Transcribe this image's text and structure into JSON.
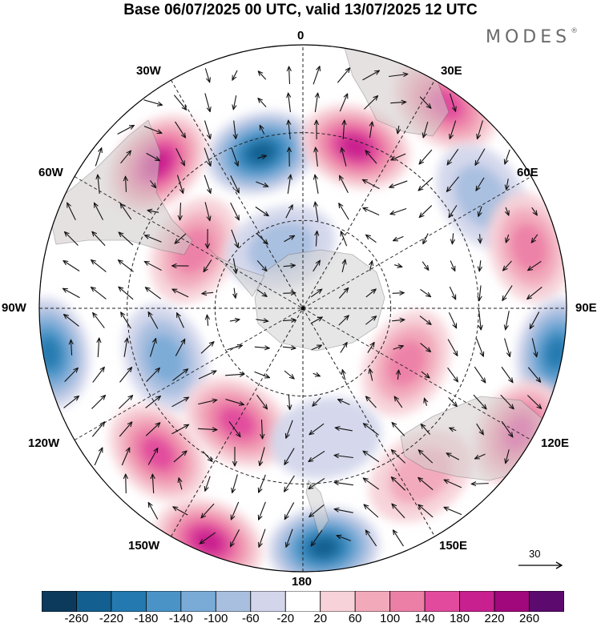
{
  "title": "Base 06/07/2025 00 UTC, valid 13/07/2025 12 UTC",
  "brand": "MODES",
  "brand_mark": "®",
  "longitude_labels": {
    "lon_0": "0",
    "lon_30e": "30E",
    "lon_60e": "60E",
    "lon_90e": "90E",
    "lon_120e": "120E",
    "lon_150e": "150E",
    "lon_180": "180",
    "lon_150w": "150W",
    "lon_120w": "120W",
    "lon_90w": "90W",
    "lon_60w": "60W",
    "lon_30w": "30W"
  },
  "reference_vector": {
    "label": "30"
  },
  "colorbar": {
    "ticks": [
      "-260",
      "-220",
      "-180",
      "-140",
      "-100",
      "-60",
      "-20",
      "20",
      "60",
      "100",
      "140",
      "180",
      "220",
      "260"
    ],
    "colors": [
      "#0b3a5c",
      "#135f8f",
      "#2479b0",
      "#4a93c6",
      "#7aabd6",
      "#a9bfdf",
      "#d3d6eb",
      "#ffffff",
      "#f7d2d8",
      "#f2aabb",
      "#ec7fa6",
      "#e24a9d",
      "#c8208e",
      "#a0087c",
      "#5c0a6e"
    ]
  },
  "map_data": {
    "projection": "south polar stereographic",
    "anomalies": [
      {
        "lon": -15,
        "lat_off": 55,
        "value": -220
      },
      {
        "lon": 18,
        "lat_off": 58,
        "value": 200
      },
      {
        "lon": 35,
        "lat_off": 85,
        "value": 140
      },
      {
        "lon": 58,
        "lat_off": 72,
        "value": -80
      },
      {
        "lon": 75,
        "lat_off": 80,
        "value": 100
      },
      {
        "lon": 100,
        "lat_off": 88,
        "value": -200
      },
      {
        "lon": 120,
        "lat_off": 85,
        "value": 160
      },
      {
        "lon": 145,
        "lat_off": 70,
        "value": 60
      },
      {
        "lon": 118,
        "lat_off": 40,
        "value": 100
      },
      {
        "lon": -45,
        "lat_off": 70,
        "value": 180
      },
      {
        "lon": -62,
        "lat_off": 42,
        "value": 100
      },
      {
        "lon": -100,
        "lat_off": 88,
        "value": -200
      },
      {
        "lon": -110,
        "lat_off": 50,
        "value": -100
      },
      {
        "lon": -135,
        "lat_off": 70,
        "value": 170
      },
      {
        "lon": -150,
        "lat_off": 45,
        "value": 140
      },
      {
        "lon": 175,
        "lat_off": 82,
        "value": -220
      },
      {
        "lon": -158,
        "lat_off": 86,
        "value": 200
      },
      {
        "lon": 170,
        "lat_off": 45,
        "value": -40
      },
      {
        "lon": -20,
        "lat_off": 22,
        "value": -60
      }
    ]
  }
}
